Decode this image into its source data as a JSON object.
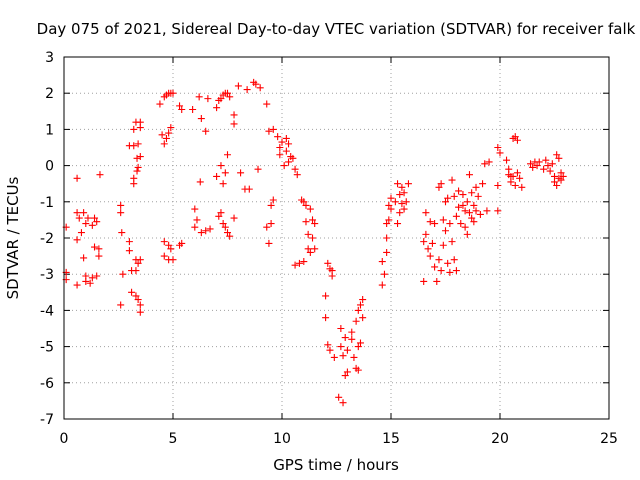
{
  "chart_data": {
    "type": "scatter",
    "title": "Day 075 of 2021, Sidereal Day-to-day VTEC variation (SDTVAR) for receiver falk",
    "xlabel": "GPS time / hours",
    "ylabel": "SDTVAR / TECUs",
    "xlim": [
      0,
      25
    ],
    "ylim": [
      -7,
      3
    ],
    "xticks": [
      0,
      5,
      10,
      15,
      20,
      25
    ],
    "xtick_labels": [
      "0",
      "5",
      "10",
      "15",
      "20",
      "25"
    ],
    "yticks": [
      -7,
      -6,
      -5,
      -4,
      -3,
      -2,
      -1,
      0,
      1,
      2,
      3
    ],
    "ytick_labels": [
      "-7",
      "-6",
      "-5",
      "-4",
      "-3",
      "-2",
      "-1",
      "0",
      "1",
      "2",
      "3"
    ],
    "grid": true,
    "marker": "+",
    "color": "#ff0000",
    "series": [
      {
        "name": "SDTVAR",
        "points": [
          [
            0.1,
            -1.7
          ],
          [
            0.1,
            -2.95
          ],
          [
            0.1,
            -3.15
          ],
          [
            0.6,
            -0.35
          ],
          [
            0.6,
            -1.3
          ],
          [
            0.6,
            -2.05
          ],
          [
            0.6,
            -3.3
          ],
          [
            0.7,
            -1.45
          ],
          [
            0.8,
            -1.85
          ],
          [
            0.9,
            -1.3
          ],
          [
            0.9,
            -2.55
          ],
          [
            1.0,
            -1.6
          ],
          [
            1.0,
            -3.05
          ],
          [
            1.0,
            -3.2
          ],
          [
            1.1,
            -1.45
          ],
          [
            1.2,
            -3.25
          ],
          [
            1.3,
            -1.65
          ],
          [
            1.3,
            -3.1
          ],
          [
            1.4,
            -1.45
          ],
          [
            1.4,
            -2.25
          ],
          [
            1.5,
            -3.05
          ],
          [
            1.5,
            -1.55
          ],
          [
            1.6,
            -2.3
          ],
          [
            1.6,
            -2.5
          ],
          [
            1.65,
            -0.25
          ],
          [
            2.6,
            -3.85
          ],
          [
            2.6,
            -1.3
          ],
          [
            2.6,
            -1.1
          ],
          [
            2.65,
            -1.85
          ],
          [
            2.7,
            -3.0
          ],
          [
            3.0,
            0.55
          ],
          [
            3.0,
            -2.1
          ],
          [
            3.0,
            -2.35
          ],
          [
            3.1,
            -2.9
          ],
          [
            3.1,
            -3.5
          ],
          [
            3.2,
            0.55
          ],
          [
            3.2,
            1.0
          ],
          [
            3.2,
            -0.35
          ],
          [
            3.2,
            -0.5
          ],
          [
            3.3,
            -2.6
          ],
          [
            3.3,
            -2.9
          ],
          [
            3.3,
            -3.6
          ],
          [
            3.3,
            1.2
          ],
          [
            3.35,
            0.2
          ],
          [
            3.35,
            -0.15
          ],
          [
            3.4,
            0.6
          ],
          [
            3.4,
            -0.05
          ],
          [
            3.4,
            -2.7
          ],
          [
            3.4,
            -3.7
          ],
          [
            3.5,
            1.05
          ],
          [
            3.5,
            -2.6
          ],
          [
            3.5,
            -3.85
          ],
          [
            3.5,
            -4.05
          ],
          [
            3.5,
            0.25
          ],
          [
            3.5,
            1.2
          ],
          [
            4.4,
            1.7
          ],
          [
            4.5,
            0.85
          ],
          [
            4.6,
            1.9
          ],
          [
            4.6,
            0.6
          ],
          [
            4.6,
            -2.1
          ],
          [
            4.6,
            -2.5
          ],
          [
            4.7,
            0.75
          ],
          [
            4.7,
            1.95
          ],
          [
            4.8,
            2.0
          ],
          [
            4.8,
            0.9
          ],
          [
            4.8,
            -2.2
          ],
          [
            4.8,
            -2.6
          ],
          [
            4.9,
            2.0
          ],
          [
            4.9,
            1.05
          ],
          [
            4.9,
            -2.3
          ],
          [
            5.0,
            2.0
          ],
          [
            5.0,
            -2.6
          ],
          [
            5.3,
            1.65
          ],
          [
            5.3,
            -2.2
          ],
          [
            5.4,
            1.55
          ],
          [
            5.4,
            -2.15
          ],
          [
            5.9,
            1.55
          ],
          [
            6.0,
            -1.2
          ],
          [
            6.0,
            -1.7
          ],
          [
            6.1,
            -1.5
          ],
          [
            6.2,
            1.9
          ],
          [
            6.25,
            -0.45
          ],
          [
            6.3,
            1.3
          ],
          [
            6.3,
            -1.85
          ],
          [
            6.5,
            0.95
          ],
          [
            6.5,
            -1.8
          ],
          [
            6.6,
            1.85
          ],
          [
            6.7,
            -1.75
          ],
          [
            7.0,
            -0.3
          ],
          [
            7.0,
            1.6
          ],
          [
            7.1,
            1.8
          ],
          [
            7.1,
            -1.4
          ],
          [
            7.2,
            1.85
          ],
          [
            7.2,
            0.0
          ],
          [
            7.2,
            -1.3
          ],
          [
            7.3,
            1.95
          ],
          [
            7.3,
            -0.5
          ],
          [
            7.3,
            -1.6
          ],
          [
            7.4,
            2.0
          ],
          [
            7.4,
            -0.2
          ],
          [
            7.4,
            -1.7
          ],
          [
            7.5,
            2.0
          ],
          [
            7.5,
            0.3
          ],
          [
            7.5,
            -1.85
          ],
          [
            7.6,
            1.9
          ],
          [
            7.6,
            -1.95
          ],
          [
            7.8,
            1.4
          ],
          [
            7.8,
            1.15
          ],
          [
            7.8,
            -1.45
          ],
          [
            8.0,
            2.2
          ],
          [
            8.1,
            -0.2
          ],
          [
            8.3,
            -0.65
          ],
          [
            8.4,
            2.1
          ],
          [
            8.5,
            -0.65
          ],
          [
            8.7,
            2.3
          ],
          [
            8.8,
            2.25
          ],
          [
            8.9,
            -0.1
          ],
          [
            9.0,
            2.15
          ],
          [
            9.3,
            1.7
          ],
          [
            9.3,
            -1.7
          ],
          [
            9.4,
            0.95
          ],
          [
            9.4,
            -2.15
          ],
          [
            9.5,
            -1.6
          ],
          [
            9.5,
            -1.1
          ],
          [
            9.6,
            1.0
          ],
          [
            9.6,
            -0.95
          ],
          [
            9.8,
            0.8
          ],
          [
            9.9,
            0.5
          ],
          [
            9.9,
            0.3
          ],
          [
            10.0,
            0.65
          ],
          [
            10.1,
            0.0
          ],
          [
            10.2,
            0.75
          ],
          [
            10.2,
            0.4
          ],
          [
            10.3,
            0.1
          ],
          [
            10.3,
            0.6
          ],
          [
            10.4,
            0.25
          ],
          [
            10.5,
            0.2
          ],
          [
            10.6,
            -0.1
          ],
          [
            10.6,
            -2.75
          ],
          [
            10.7,
            -0.25
          ],
          [
            10.8,
            -2.7
          ],
          [
            10.9,
            -0.95
          ],
          [
            11.0,
            -1.0
          ],
          [
            11.0,
            -2.65
          ],
          [
            11.1,
            -1.1
          ],
          [
            11.1,
            -1.55
          ],
          [
            11.2,
            -1.9
          ],
          [
            11.2,
            -2.3
          ],
          [
            11.3,
            -2.4
          ],
          [
            11.3,
            -1.2
          ],
          [
            11.4,
            -1.5
          ],
          [
            11.4,
            -2.0
          ],
          [
            11.5,
            -1.6
          ],
          [
            11.5,
            -2.3
          ],
          [
            12.0,
            -3.6
          ],
          [
            12.0,
            -4.2
          ],
          [
            12.1,
            -2.7
          ],
          [
            12.1,
            -4.95
          ],
          [
            12.2,
            -2.85
          ],
          [
            12.2,
            -5.1
          ],
          [
            12.3,
            -2.9
          ],
          [
            12.3,
            -3.05
          ],
          [
            12.4,
            -5.3
          ],
          [
            12.6,
            -6.4
          ],
          [
            12.7,
            -4.5
          ],
          [
            12.7,
            -5.0
          ],
          [
            12.8,
            -5.25
          ],
          [
            12.8,
            -6.55
          ],
          [
            12.9,
            -4.75
          ],
          [
            12.9,
            -5.8
          ],
          [
            13.0,
            -5.7
          ],
          [
            13.0,
            -5.1
          ],
          [
            13.2,
            -4.6
          ],
          [
            13.2,
            -4.8
          ],
          [
            13.3,
            -5.3
          ],
          [
            13.4,
            -5.6
          ],
          [
            13.4,
            -4.3
          ],
          [
            13.5,
            -4.0
          ],
          [
            13.5,
            -5.0
          ],
          [
            13.5,
            -5.65
          ],
          [
            13.6,
            -3.85
          ],
          [
            13.6,
            -4.9
          ],
          [
            13.7,
            -4.2
          ],
          [
            13.7,
            -3.7
          ],
          [
            14.6,
            -2.65
          ],
          [
            14.6,
            -3.3
          ],
          [
            14.7,
            -3.0
          ],
          [
            14.8,
            -2.0
          ],
          [
            14.8,
            -2.4
          ],
          [
            14.8,
            -1.6
          ],
          [
            14.9,
            -1.1
          ],
          [
            14.9,
            -1.5
          ],
          [
            15.0,
            -1.2
          ],
          [
            15.0,
            -0.9
          ],
          [
            15.2,
            -1.0
          ],
          [
            15.3,
            -0.5
          ],
          [
            15.3,
            -1.6
          ],
          [
            15.4,
            -0.8
          ],
          [
            15.4,
            -1.3
          ],
          [
            15.5,
            -0.6
          ],
          [
            15.5,
            -1.05
          ],
          [
            15.6,
            -0.75
          ],
          [
            15.6,
            -1.2
          ],
          [
            15.7,
            -1.0
          ],
          [
            15.8,
            -0.5
          ],
          [
            16.5,
            -2.1
          ],
          [
            16.5,
            -3.2
          ],
          [
            16.6,
            -1.3
          ],
          [
            16.6,
            -1.9
          ],
          [
            16.7,
            -2.3
          ],
          [
            16.8,
            -1.55
          ],
          [
            16.8,
            -2.5
          ],
          [
            16.9,
            -2.15
          ],
          [
            17.0,
            -1.6
          ],
          [
            17.0,
            -2.8
          ],
          [
            17.1,
            -3.2
          ],
          [
            17.2,
            -0.6
          ],
          [
            17.2,
            -2.6
          ],
          [
            17.3,
            -2.9
          ],
          [
            17.3,
            -0.5
          ],
          [
            17.4,
            -1.5
          ],
          [
            17.4,
            -2.2
          ],
          [
            17.5,
            -1.0
          ],
          [
            17.5,
            -1.8
          ],
          [
            17.6,
            -0.9
          ],
          [
            17.6,
            -2.7
          ],
          [
            17.7,
            -2.95
          ],
          [
            17.7,
            -1.6
          ],
          [
            17.8,
            -0.4
          ],
          [
            17.8,
            -2.1
          ],
          [
            17.9,
            -2.6
          ],
          [
            17.9,
            -0.85
          ],
          [
            18.0,
            -1.4
          ],
          [
            18.0,
            -2.9
          ],
          [
            18.1,
            -1.15
          ],
          [
            18.1,
            -0.7
          ],
          [
            18.2,
            -1.6
          ],
          [
            18.3,
            -1.1
          ],
          [
            18.3,
            -0.8
          ],
          [
            18.4,
            -1.7
          ],
          [
            18.4,
            -1.25
          ],
          [
            18.5,
            -1.0
          ],
          [
            18.5,
            -1.9
          ],
          [
            18.6,
            -1.3
          ],
          [
            18.6,
            -0.25
          ],
          [
            18.7,
            -1.45
          ],
          [
            18.7,
            -0.75
          ],
          [
            18.8,
            -1.1
          ],
          [
            18.8,
            -1.55
          ],
          [
            18.9,
            -1.25
          ],
          [
            18.9,
            -0.6
          ],
          [
            19.0,
            -0.85
          ],
          [
            19.1,
            -1.35
          ],
          [
            19.2,
            -0.5
          ],
          [
            19.3,
            0.05
          ],
          [
            19.4,
            -1.25
          ],
          [
            19.5,
            0.1
          ],
          [
            19.9,
            0.5
          ],
          [
            19.9,
            -0.55
          ],
          [
            19.9,
            -1.25
          ],
          [
            20.0,
            0.35
          ],
          [
            20.3,
            0.15
          ],
          [
            20.4,
            -0.25
          ],
          [
            20.4,
            -0.1
          ],
          [
            20.5,
            -0.3
          ],
          [
            20.5,
            -0.45
          ],
          [
            20.6,
            0.75
          ],
          [
            20.6,
            -0.3
          ],
          [
            20.7,
            0.8
          ],
          [
            20.7,
            -0.55
          ],
          [
            20.8,
            0.7
          ],
          [
            20.8,
            -0.2
          ],
          [
            20.9,
            -0.35
          ],
          [
            21.0,
            -0.6
          ],
          [
            21.4,
            0.05
          ],
          [
            21.5,
            -0.05
          ],
          [
            21.6,
            0.1
          ],
          [
            21.7,
            0.0
          ],
          [
            21.8,
            0.1
          ],
          [
            22.0,
            -0.1
          ],
          [
            22.1,
            0.15
          ],
          [
            22.2,
            0.0
          ],
          [
            22.3,
            -0.15
          ],
          [
            22.4,
            0.05
          ],
          [
            22.5,
            -0.3
          ],
          [
            22.5,
            -0.45
          ],
          [
            22.6,
            0.3
          ],
          [
            22.6,
            -0.55
          ],
          [
            22.7,
            0.2
          ],
          [
            22.7,
            -0.35
          ],
          [
            22.8,
            -0.2
          ],
          [
            22.8,
            -0.4
          ],
          [
            22.9,
            -0.3
          ]
        ]
      }
    ]
  }
}
